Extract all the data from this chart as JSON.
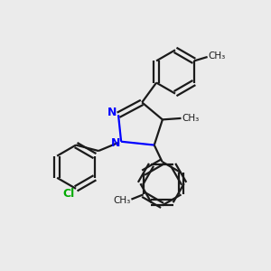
{
  "background_color": "#ebebeb",
  "bond_color": "#1a1a1a",
  "n_color": "#0000ff",
  "cl_color": "#00aa00",
  "line_width": 1.6,
  "figsize": [
    3.0,
    3.0
  ],
  "dpi": 100,
  "xlim": [
    0,
    10
  ],
  "ylim": [
    0,
    10
  ]
}
